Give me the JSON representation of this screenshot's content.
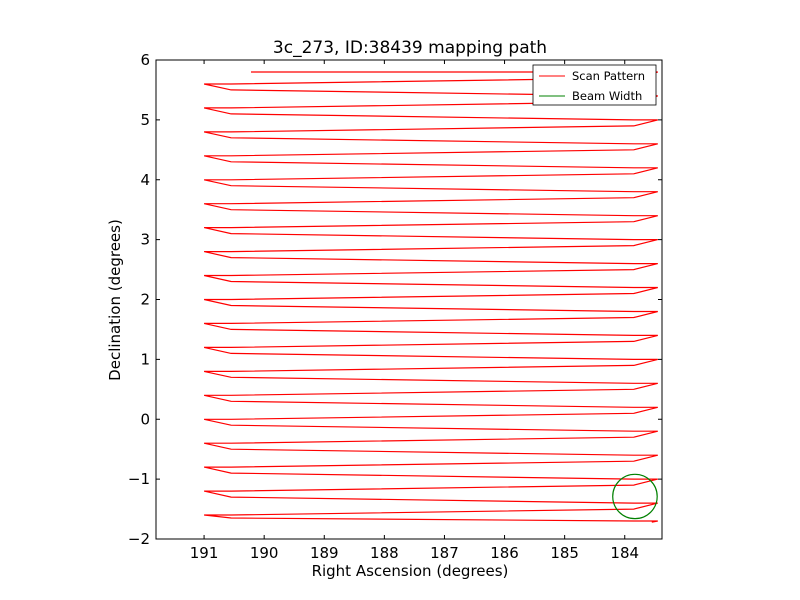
{
  "chart_data": {
    "type": "line",
    "title": "3c_273, ID:38439 mapping path",
    "xlabel": "Right Ascension (degrees)",
    "ylabel": "Declination (degrees)",
    "x_reversed": true,
    "xlim": [
      191.8,
      183.38
    ],
    "ylim": [
      -2,
      6
    ],
    "xticks": [
      191,
      190,
      189,
      188,
      187,
      186,
      185,
      184
    ],
    "yticks": [
      -2,
      -1,
      0,
      1,
      2,
      3,
      4,
      5,
      6
    ],
    "ytick_labels": [
      "−2",
      "−1",
      "0",
      "1",
      "2",
      "3",
      "4",
      "5",
      "6"
    ],
    "grid": false,
    "legend_position": "top-right",
    "series": [
      {
        "name": "Scan Pattern",
        "color": "#ff0000",
        "ra_west": 191.0,
        "ra_west_inner": 190.55,
        "ra_east": 183.45,
        "ra_east_inner": 183.85,
        "ra_start": 190.22,
        "rows": [
          5.8,
          5.6,
          5.4,
          5.2,
          5.0,
          4.8,
          4.6,
          4.4,
          4.2,
          4.0,
          3.8,
          3.6,
          3.4,
          3.2,
          3.0,
          2.8,
          2.6,
          2.4,
          2.2,
          2.0,
          1.8,
          1.6,
          1.4,
          1.2,
          1.0,
          0.8,
          0.6,
          0.4,
          0.2,
          0.0,
          -0.2,
          -0.4,
          -0.6,
          -0.8,
          -1.0,
          -1.2,
          -1.4,
          -1.6,
          -1.7
        ],
        "end_ra": 183.55,
        "end_dec": -1.72
      },
      {
        "name": "Beam Width",
        "color": "#008000",
        "center_ra": 183.83,
        "center_dec": -1.29,
        "radius_deg": 0.37
      }
    ]
  }
}
